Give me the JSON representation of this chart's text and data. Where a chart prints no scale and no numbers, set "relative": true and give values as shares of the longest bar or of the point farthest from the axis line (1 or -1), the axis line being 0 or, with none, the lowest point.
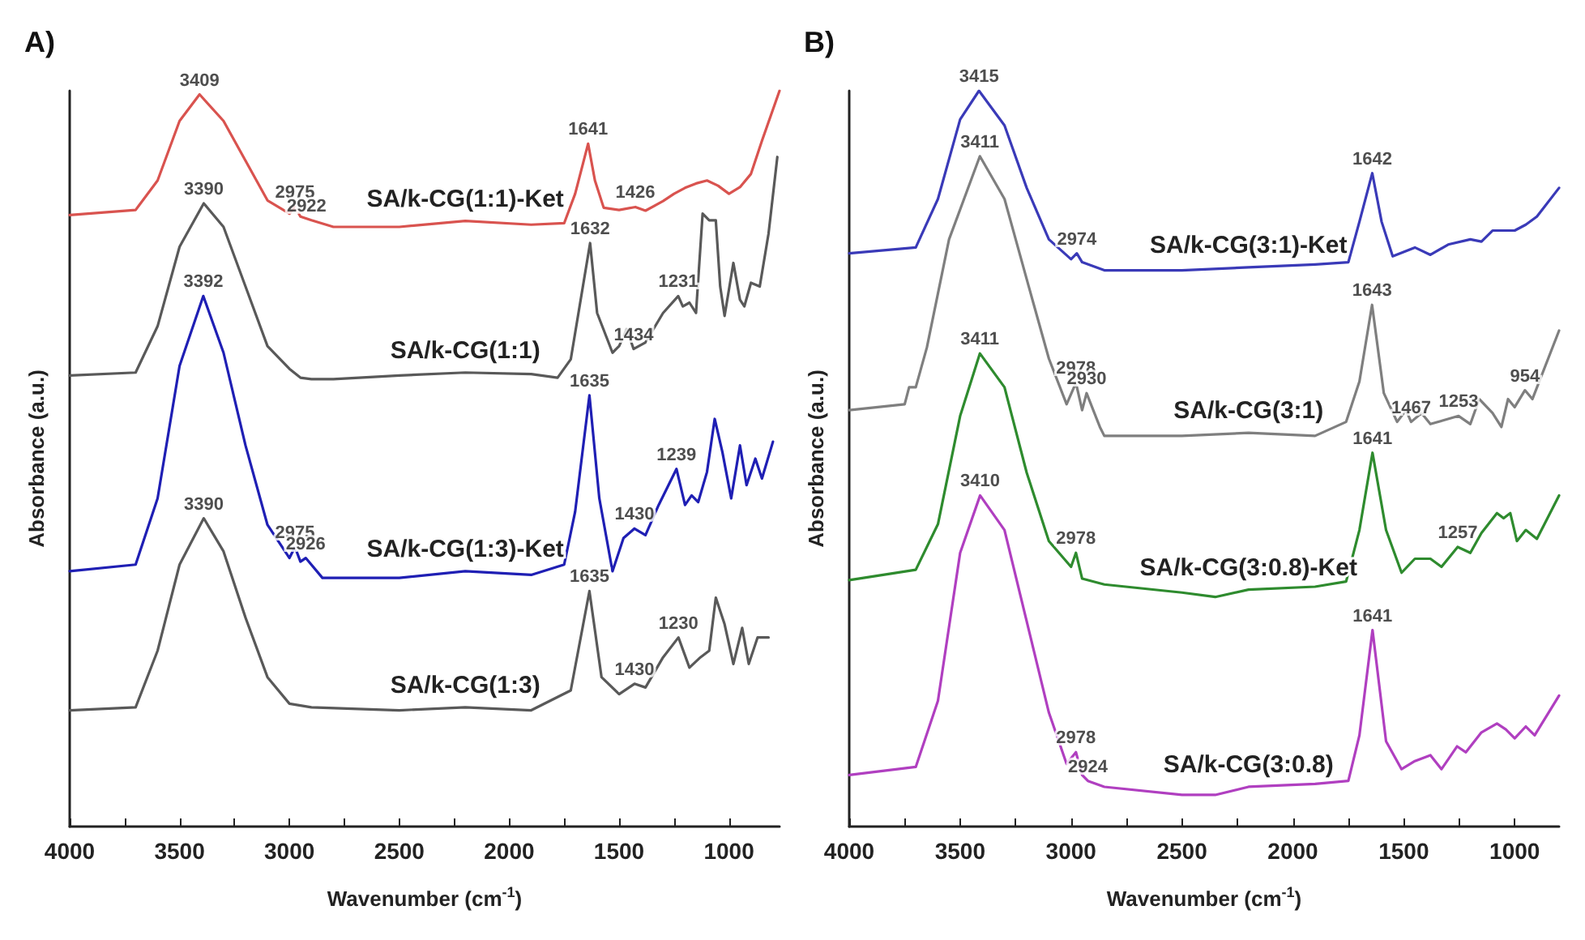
{
  "chart_data": [
    {
      "type": "line",
      "title": "A)",
      "xlabel": "Wavenumber (cm$^{-1}$)",
      "ylabel": "Absorbance (a.u.)",
      "relative": true,
      "xlim": [
        4000,
        770
      ],
      "xticks": [
        4000,
        {
          "value": 3750,
          "label": null
        },
        3500,
        {
          "value": 3250,
          "label": null
        },
        3000,
        {
          "value": 2750,
          "label": null
        },
        2500,
        {
          "value": 2250,
          "label": null
        },
        2000,
        {
          "value": 1750,
          "label": null
        },
        1500,
        {
          "value": 1250,
          "label": null
        },
        1000
      ],
      "tick_labels": "x",
      "grid": false,
      "legend": false,
      "marker": "none",
      "line_style": "solid",
      "series": [
        {
          "name": "SA/k-CG(1:1)-Ket",
          "color": "#d9534f",
          "x": [
            4000,
            3700,
            3600,
            3500,
            3409,
            3300,
            3200,
            3100,
            3000,
            2975,
            2950,
            2900,
            2800,
            2500,
            2200,
            1900,
            1750,
            1700,
            1641,
            1610,
            1570,
            1500,
            1426,
            1380,
            1300,
            1250,
            1200,
            1150,
            1100,
            1050,
            1000,
            950,
            900,
            850,
            770
          ],
          "values": [
            0.831,
            0.838,
            0.878,
            0.959,
            0.995,
            0.959,
            0.905,
            0.851,
            0.833,
            0.842,
            0.829,
            0.824,
            0.815,
            0.815,
            0.823,
            0.818,
            0.82,
            0.86,
            0.928,
            0.878,
            0.841,
            0.838,
            0.842,
            0.837,
            0.85,
            0.86,
            0.868,
            0.874,
            0.878,
            0.871,
            0.86,
            0.869,
            0.887,
            0.932,
            1.0
          ]
        },
        {
          "name": "SA/k-CG(1:1)",
          "color": "#595959",
          "x": [
            4000,
            3700,
            3600,
            3500,
            3390,
            3300,
            3200,
            3100,
            3000,
            2950,
            2900,
            2800,
            2500,
            2200,
            1900,
            1780,
            1720,
            1632,
            1600,
            1530,
            1500,
            1465,
            1434,
            1380,
            1300,
            1231,
            1210,
            1180,
            1150,
            1120,
            1090,
            1060,
            1040,
            1020,
            980,
            950,
            930,
            900,
            860,
            820,
            780
          ],
          "values": [
            0.613,
            0.617,
            0.68,
            0.788,
            0.847,
            0.815,
            0.734,
            0.653,
            0.622,
            0.61,
            0.608,
            0.608,
            0.613,
            0.617,
            0.615,
            0.61,
            0.635,
            0.793,
            0.698,
            0.644,
            0.653,
            0.676,
            0.649,
            0.658,
            0.698,
            0.721,
            0.707,
            0.712,
            0.698,
            0.833,
            0.824,
            0.824,
            0.734,
            0.694,
            0.766,
            0.716,
            0.707,
            0.739,
            0.734,
            0.806,
            0.91
          ]
        },
        {
          "name": "SA/k-CG(1:3)-Ket",
          "color": "#1f1fb4",
          "x": [
            4000,
            3700,
            3600,
            3500,
            3392,
            3300,
            3200,
            3100,
            3000,
            2975,
            2950,
            2926,
            2850,
            2500,
            2200,
            1900,
            1750,
            1700,
            1635,
            1590,
            1530,
            1480,
            1430,
            1380,
            1320,
            1239,
            1200,
            1170,
            1140,
            1100,
            1065,
            1030,
            990,
            950,
            920,
            880,
            850,
            800
          ],
          "values": [
            0.347,
            0.356,
            0.446,
            0.626,
            0.721,
            0.644,
            0.518,
            0.41,
            0.365,
            0.38,
            0.36,
            0.365,
            0.338,
            0.338,
            0.347,
            0.342,
            0.356,
            0.428,
            0.586,
            0.446,
            0.347,
            0.392,
            0.405,
            0.396,
            0.437,
            0.486,
            0.437,
            0.45,
            0.441,
            0.482,
            0.554,
            0.509,
            0.446,
            0.518,
            0.464,
            0.5,
            0.473,
            0.523
          ]
        },
        {
          "name": "SA/k-CG(1:3)",
          "color": "#595959",
          "x": [
            4000,
            3700,
            3600,
            3500,
            3390,
            3300,
            3200,
            3100,
            3000,
            2900,
            2500,
            2200,
            1900,
            1720,
            1635,
            1580,
            1500,
            1430,
            1380,
            1300,
            1230,
            1180,
            1130,
            1090,
            1060,
            1020,
            980,
            940,
            910,
            870,
            820
          ],
          "values": [
            0.158,
            0.162,
            0.239,
            0.356,
            0.419,
            0.374,
            0.284,
            0.203,
            0.167,
            0.162,
            0.158,
            0.162,
            0.158,
            0.185,
            0.32,
            0.203,
            0.18,
            0.194,
            0.189,
            0.23,
            0.257,
            0.216,
            0.23,
            0.239,
            0.311,
            0.275,
            0.221,
            0.27,
            0.221,
            0.257,
            0.257
          ]
        }
      ],
      "annotations": [
        {
          "text": "3409",
          "x": 3409,
          "y": 0.995
        },
        {
          "text": "2975",
          "x": 2975,
          "y": 0.842
        },
        {
          "text": "2922",
          "x": 2922,
          "y": 0.824
        },
        {
          "text": "1641",
          "x": 1641,
          "y": 0.928
        },
        {
          "text": "1426",
          "x": 1426,
          "y": 0.842
        },
        {
          "text": "3390",
          "x": 3390,
          "y": 0.847
        },
        {
          "text": "1632",
          "x": 1632,
          "y": 0.793
        },
        {
          "text": "1434",
          "x": 1434,
          "y": 0.649
        },
        {
          "text": "1231",
          "x": 1231,
          "y": 0.721
        },
        {
          "text": "3392",
          "x": 3392,
          "y": 0.721
        },
        {
          "text": "2975",
          "x": 2975,
          "y": 0.38
        },
        {
          "text": "2926",
          "x": 2926,
          "y": 0.365
        },
        {
          "text": "1635",
          "x": 1635,
          "y": 0.586
        },
        {
          "text": "1430",
          "x": 1430,
          "y": 0.405
        },
        {
          "text": "1239",
          "x": 1239,
          "y": 0.486
        },
        {
          "text": "3390",
          "x": 3390,
          "y": 0.419
        },
        {
          "text": "1635",
          "x": 1635,
          "y": 0.32
        },
        {
          "text": "1430",
          "x": 1430,
          "y": 0.194
        },
        {
          "text": "1230",
          "x": 1230,
          "y": 0.257
        }
      ]
    },
    {
      "type": "line",
      "title": "B)",
      "xlabel": "Wavenumber (cm$^{-1}$)",
      "ylabel": "Absorbance (a.u.)",
      "relative": true,
      "xlim": [
        4000,
        800
      ],
      "xticks": [
        4000,
        {
          "value": 3750,
          "label": null
        },
        3500,
        {
          "value": 3250,
          "label": null
        },
        3000,
        {
          "value": 2750,
          "label": null
        },
        2500,
        {
          "value": 2250,
          "label": null
        },
        2000,
        {
          "value": 1750,
          "label": null
        },
        1500,
        {
          "value": 1250,
          "label": null
        },
        1000
      ],
      "tick_labels": "x",
      "grid": false,
      "legend": false,
      "marker": "none",
      "line_style": "solid",
      "series": [
        {
          "name": "SA/k-CG(3:1)-Ket",
          "color": "#3a3ab8",
          "x": [
            4000,
            3700,
            3600,
            3500,
            3415,
            3300,
            3200,
            3100,
            3000,
            2974,
            2950,
            2850,
            2500,
            2200,
            1900,
            1750,
            1700,
            1642,
            1600,
            1550,
            1450,
            1380,
            1300,
            1200,
            1150,
            1100,
            1000,
            950,
            900,
            800
          ],
          "values": [
            0.779,
            0.787,
            0.853,
            0.961,
            1.0,
            0.953,
            0.868,
            0.798,
            0.771,
            0.779,
            0.767,
            0.756,
            0.756,
            0.76,
            0.764,
            0.767,
            0.822,
            0.888,
            0.822,
            0.775,
            0.787,
            0.777,
            0.791,
            0.798,
            0.795,
            0.81,
            0.81,
            0.818,
            0.829,
            0.868
          ]
        },
        {
          "name": "SA/k-CG(3:1)",
          "color": "#7f7f7f",
          "x": [
            4000,
            3750,
            3730,
            3700,
            3650,
            3550,
            3411,
            3300,
            3200,
            3100,
            3020,
            2978,
            2950,
            2930,
            2870,
            2850,
            2500,
            2200,
            1900,
            1760,
            1700,
            1643,
            1590,
            1530,
            1490,
            1467,
            1420,
            1380,
            1253,
            1200,
            1160,
            1100,
            1060,
            1030,
            1000,
            954,
            920,
            800
          ],
          "values": [
            0.566,
            0.574,
            0.597,
            0.597,
            0.651,
            0.798,
            0.911,
            0.853,
            0.744,
            0.636,
            0.574,
            0.603,
            0.566,
            0.589,
            0.543,
            0.531,
            0.531,
            0.535,
            0.531,
            0.55,
            0.605,
            0.709,
            0.589,
            0.55,
            0.566,
            0.55,
            0.562,
            0.547,
            0.558,
            0.547,
            0.581,
            0.562,
            0.543,
            0.581,
            0.57,
            0.593,
            0.581,
            0.674
          ]
        },
        {
          "name": "SA/k-CG(3:0.8)-Ket",
          "color": "#2e8b2e",
          "x": [
            4000,
            3700,
            3600,
            3500,
            3411,
            3300,
            3200,
            3100,
            3000,
            2978,
            2950,
            2850,
            2500,
            2350,
            2200,
            1900,
            1760,
            1700,
            1641,
            1580,
            1510,
            1450,
            1380,
            1330,
            1257,
            1200,
            1150,
            1080,
            1050,
            1020,
            990,
            950,
            900,
            800
          ],
          "values": [
            0.335,
            0.349,
            0.411,
            0.558,
            0.643,
            0.597,
            0.481,
            0.388,
            0.353,
            0.372,
            0.337,
            0.329,
            0.318,
            0.312,
            0.322,
            0.326,
            0.333,
            0.403,
            0.508,
            0.403,
            0.345,
            0.364,
            0.364,
            0.353,
            0.38,
            0.372,
            0.399,
            0.426,
            0.419,
            0.426,
            0.388,
            0.403,
            0.391,
            0.45
          ]
        },
        {
          "name": "SA/k-CG(3:0.8)",
          "color": "#b03fc0",
          "x": [
            4000,
            3700,
            3600,
            3500,
            3410,
            3300,
            3200,
            3100,
            3020,
            2978,
            2950,
            2924,
            2850,
            2500,
            2350,
            2200,
            1900,
            1750,
            1700,
            1641,
            1580,
            1510,
            1450,
            1380,
            1330,
            1260,
            1220,
            1150,
            1080,
            1040,
            1000,
            950,
            910,
            800
          ],
          "values": [
            0.07,
            0.081,
            0.171,
            0.372,
            0.45,
            0.403,
            0.279,
            0.155,
            0.085,
            0.101,
            0.07,
            0.062,
            0.054,
            0.043,
            0.043,
            0.054,
            0.058,
            0.062,
            0.124,
            0.267,
            0.116,
            0.078,
            0.089,
            0.097,
            0.078,
            0.109,
            0.101,
            0.128,
            0.14,
            0.132,
            0.12,
            0.136,
            0.124,
            0.178
          ]
        }
      ],
      "annotations": [
        {
          "text": "3415",
          "x": 3415,
          "y": 1.0
        },
        {
          "text": "2974",
          "x": 2974,
          "y": 0.779
        },
        {
          "text": "1642",
          "x": 1642,
          "y": 0.888
        },
        {
          "text": "3411",
          "x": 3411,
          "y": 0.911
        },
        {
          "text": "2978",
          "x": 2978,
          "y": 0.603
        },
        {
          "text": "2930",
          "x": 2930,
          "y": 0.589
        },
        {
          "text": "1643",
          "x": 1643,
          "y": 0.709
        },
        {
          "text": "1467",
          "x": 1467,
          "y": 0.55
        },
        {
          "text": "1253",
          "x": 1253,
          "y": 0.558
        },
        {
          "text": "954",
          "x": 954,
          "y": 0.593
        },
        {
          "text": "3411",
          "x": 3411,
          "y": 0.643
        },
        {
          "text": "2978",
          "x": 2978,
          "y": 0.372
        },
        {
          "text": "1641",
          "x": 1641,
          "y": 0.508
        },
        {
          "text": "1257",
          "x": 1257,
          "y": 0.38
        },
        {
          "text": "3410",
          "x": 3410,
          "y": 0.45
        },
        {
          "text": "2978",
          "x": 2978,
          "y": 0.101
        },
        {
          "text": "2924",
          "x": 2924,
          "y": 0.062
        },
        {
          "text": "1641",
          "x": 1641,
          "y": 0.267
        }
      ]
    }
  ]
}
